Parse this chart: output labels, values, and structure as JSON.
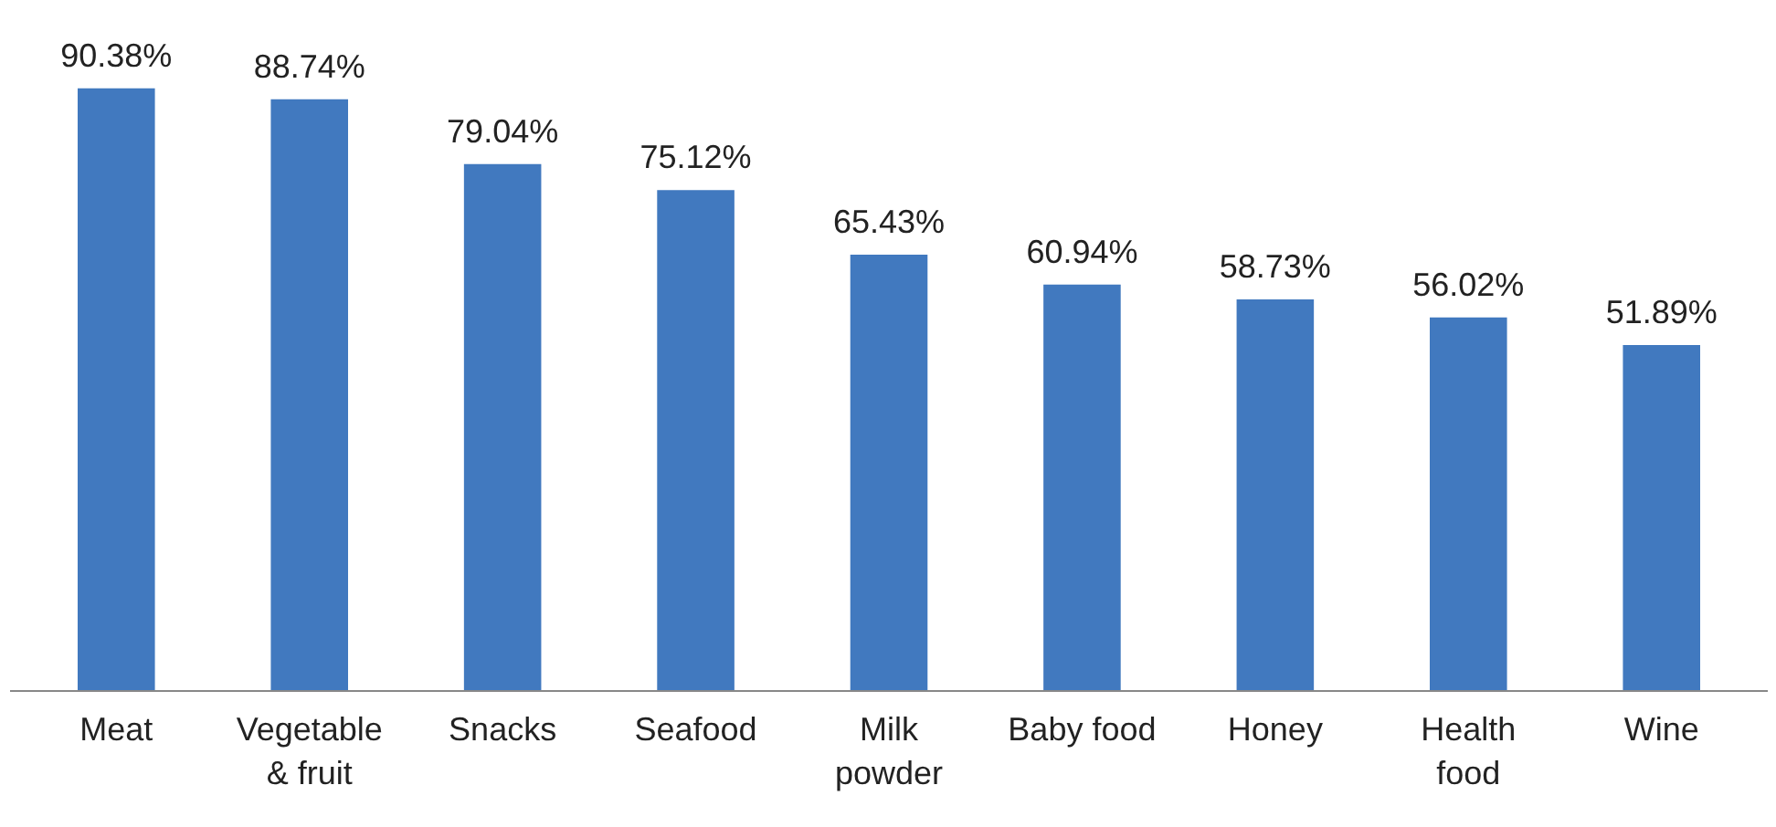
{
  "chart_data": {
    "type": "bar",
    "categories": [
      "Meat",
      "Vegetable\n& fruit",
      "Snacks",
      "Seafood",
      "Milk\npowder",
      "Baby food",
      "Honey",
      "Health\nfood",
      "Wine"
    ],
    "values": [
      90.38,
      88.74,
      79.04,
      75.12,
      65.43,
      60.94,
      58.73,
      56.02,
      51.89
    ],
    "value_labels": [
      "90.38%",
      "88.74%",
      "79.04%",
      "75.12%",
      "65.43%",
      "60.94%",
      "58.73%",
      "56.02%",
      "51.89%"
    ],
    "color": "#4179bf",
    "tick_labels": "x",
    "grid": false
  }
}
